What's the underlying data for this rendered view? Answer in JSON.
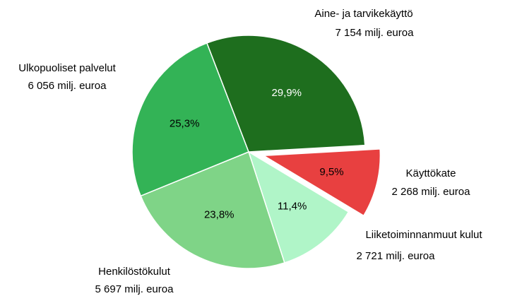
{
  "chart_data": {
    "type": "pie",
    "categories": [
      "Aine- ja tarvikekäyttö",
      "Käyttökate",
      "Liiketoiminnanmuut kulut",
      "Henkilöstökulut",
      "Ulkopuoliset palvelut"
    ],
    "values": [
      29.9,
      9.5,
      11.4,
      23.8,
      25.3
    ],
    "value_labels": [
      "29,9%",
      "9,5%",
      "11,4%",
      "23,8%",
      "25,3%"
    ],
    "amount_labels": [
      "7 154 milj. euroa",
      "2 268 milj. euroa",
      "2 721 milj. euroa",
      "5 697 milj. euroa",
      "6 056 milj. euroa"
    ],
    "colors": [
      "#1e6e1e",
      "#e84040",
      "#b0f5c8",
      "#7fd487",
      "#33b356"
    ],
    "explode": [
      false,
      true,
      false,
      false,
      false
    ]
  }
}
